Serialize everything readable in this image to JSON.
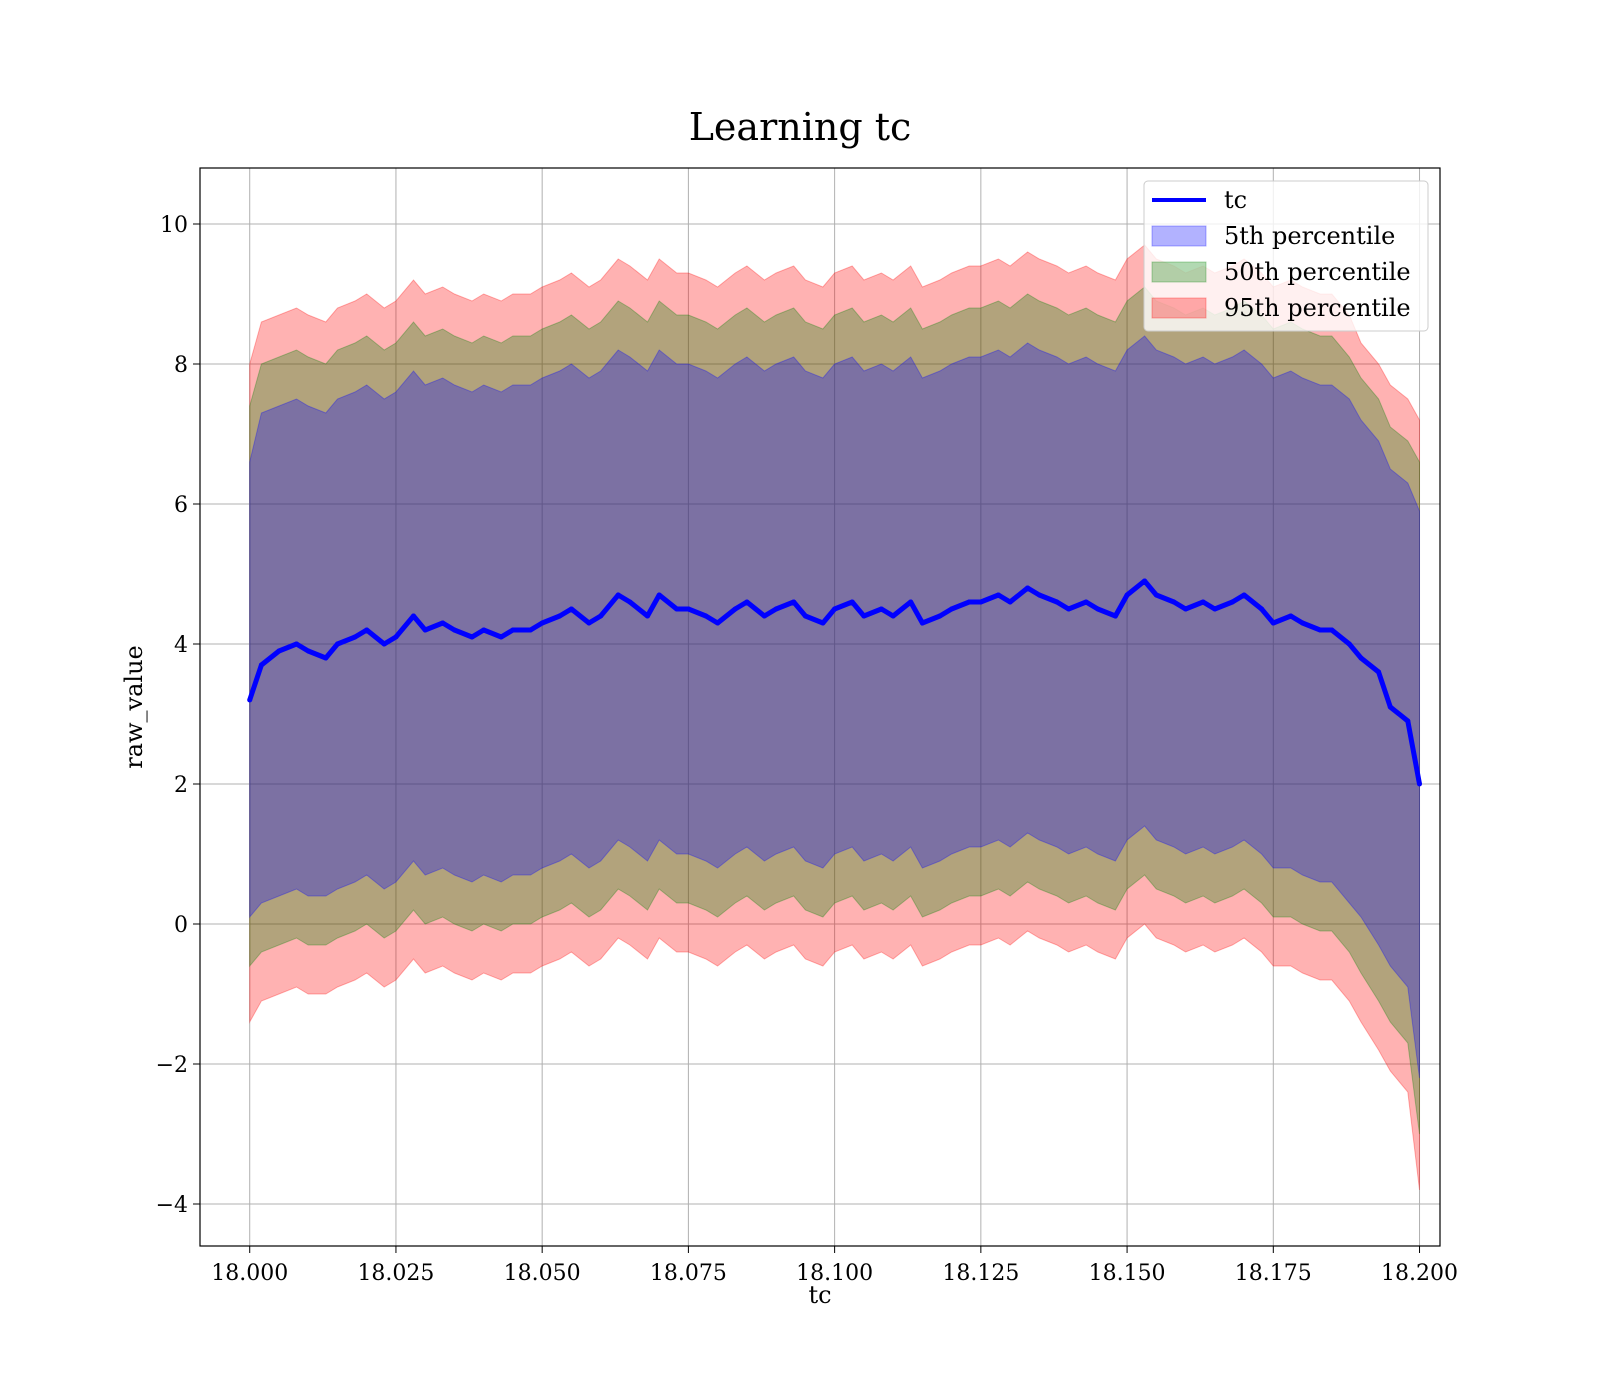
{
  "chart_data": {
    "type": "line",
    "title": "Learning tc",
    "xlabel": "tc",
    "ylabel": "raw_value",
    "xlim": [
      17.9915,
      18.2035
    ],
    "ylim": [
      -4.6,
      10.8
    ],
    "xticks": [
      18.0,
      18.025,
      18.05,
      18.075,
      18.1,
      18.125,
      18.15,
      18.175,
      18.2
    ],
    "xtick_labels": [
      "18.000",
      "18.025",
      "18.050",
      "18.075",
      "18.100",
      "18.125",
      "18.150",
      "18.175",
      "18.200"
    ],
    "yticks": [
      -4,
      -2,
      0,
      2,
      4,
      6,
      8,
      10
    ],
    "ytick_labels": [
      "−4",
      "−2",
      "0",
      "2",
      "4",
      "6",
      "8",
      "10"
    ],
    "grid": true,
    "legend_position": "top-right",
    "x": [
      18.0,
      18.002,
      18.005,
      18.008,
      18.01,
      18.013,
      18.015,
      18.018,
      18.02,
      18.023,
      18.025,
      18.028,
      18.03,
      18.033,
      18.035,
      18.038,
      18.04,
      18.043,
      18.045,
      18.048,
      18.05,
      18.053,
      18.055,
      18.058,
      18.06,
      18.063,
      18.065,
      18.068,
      18.07,
      18.073,
      18.075,
      18.078,
      18.08,
      18.083,
      18.085,
      18.088,
      18.09,
      18.093,
      18.095,
      18.098,
      18.1,
      18.103,
      18.105,
      18.108,
      18.11,
      18.113,
      18.115,
      18.118,
      18.12,
      18.123,
      18.125,
      18.128,
      18.13,
      18.133,
      18.135,
      18.138,
      18.14,
      18.143,
      18.145,
      18.148,
      18.15,
      18.153,
      18.155,
      18.158,
      18.16,
      18.163,
      18.165,
      18.168,
      18.17,
      18.173,
      18.175,
      18.178,
      18.18,
      18.183,
      18.185,
      18.188,
      18.19,
      18.193,
      18.195,
      18.198,
      18.2
    ],
    "series": [
      {
        "name": "tc",
        "color": "#0000ff",
        "values": [
          3.2,
          3.7,
          3.9,
          4.0,
          3.9,
          3.8,
          4.0,
          4.1,
          4.2,
          4.0,
          4.1,
          4.4,
          4.2,
          4.3,
          4.2,
          4.1,
          4.2,
          4.1,
          4.2,
          4.2,
          4.3,
          4.4,
          4.5,
          4.3,
          4.4,
          4.7,
          4.6,
          4.4,
          4.7,
          4.5,
          4.5,
          4.4,
          4.3,
          4.5,
          4.6,
          4.4,
          4.5,
          4.6,
          4.4,
          4.3,
          4.5,
          4.6,
          4.4,
          4.5,
          4.4,
          4.6,
          4.3,
          4.4,
          4.5,
          4.6,
          4.6,
          4.7,
          4.6,
          4.8,
          4.7,
          4.6,
          4.5,
          4.6,
          4.5,
          4.4,
          4.7,
          4.9,
          4.7,
          4.6,
          4.5,
          4.6,
          4.5,
          4.6,
          4.7,
          4.5,
          4.3,
          4.4,
          4.3,
          4.2,
          4.2,
          4.0,
          3.8,
          3.6,
          3.1,
          2.9,
          2.0
        ]
      },
      {
        "name": "5th percentile",
        "color": "#0000ff",
        "lower": [
          0.1,
          0.3,
          0.4,
          0.5,
          0.4,
          0.4,
          0.5,
          0.6,
          0.7,
          0.5,
          0.6,
          0.9,
          0.7,
          0.8,
          0.7,
          0.6,
          0.7,
          0.6,
          0.7,
          0.7,
          0.8,
          0.9,
          1.0,
          0.8,
          0.9,
          1.2,
          1.1,
          0.9,
          1.2,
          1.0,
          1.0,
          0.9,
          0.8,
          1.0,
          1.1,
          0.9,
          1.0,
          1.1,
          0.9,
          0.8,
          1.0,
          1.1,
          0.9,
          1.0,
          0.9,
          1.1,
          0.8,
          0.9,
          1.0,
          1.1,
          1.1,
          1.2,
          1.1,
          1.3,
          1.2,
          1.1,
          1.0,
          1.1,
          1.0,
          0.9,
          1.2,
          1.4,
          1.2,
          1.1,
          1.0,
          1.1,
          1.0,
          1.1,
          1.2,
          1.0,
          0.8,
          0.8,
          0.7,
          0.6,
          0.6,
          0.3,
          0.1,
          -0.3,
          -0.6,
          -0.9,
          -2.2
        ],
        "upper": [
          6.6,
          7.3,
          7.4,
          7.5,
          7.4,
          7.3,
          7.5,
          7.6,
          7.7,
          7.5,
          7.6,
          7.9,
          7.7,
          7.8,
          7.7,
          7.6,
          7.7,
          7.6,
          7.7,
          7.7,
          7.8,
          7.9,
          8.0,
          7.8,
          7.9,
          8.2,
          8.1,
          7.9,
          8.2,
          8.0,
          8.0,
          7.9,
          7.8,
          8.0,
          8.1,
          7.9,
          8.0,
          8.1,
          7.9,
          7.8,
          8.0,
          8.1,
          7.9,
          8.0,
          7.9,
          8.1,
          7.8,
          7.9,
          8.0,
          8.1,
          8.1,
          8.2,
          8.1,
          8.3,
          8.2,
          8.1,
          8.0,
          8.1,
          8.0,
          7.9,
          8.2,
          8.4,
          8.2,
          8.1,
          8.0,
          8.1,
          8.0,
          8.1,
          8.2,
          8.0,
          7.8,
          7.9,
          7.8,
          7.7,
          7.7,
          7.5,
          7.2,
          6.9,
          6.5,
          6.3,
          5.9
        ]
      },
      {
        "name": "50th percentile",
        "color": "#008000",
        "lower": [
          -0.6,
          -0.4,
          -0.3,
          -0.2,
          -0.3,
          -0.3,
          -0.2,
          -0.1,
          0.0,
          -0.2,
          -0.1,
          0.2,
          0.0,
          0.1,
          0.0,
          -0.1,
          0.0,
          -0.1,
          0.0,
          0.0,
          0.1,
          0.2,
          0.3,
          0.1,
          0.2,
          0.5,
          0.4,
          0.2,
          0.5,
          0.3,
          0.3,
          0.2,
          0.1,
          0.3,
          0.4,
          0.2,
          0.3,
          0.4,
          0.2,
          0.1,
          0.3,
          0.4,
          0.2,
          0.3,
          0.2,
          0.4,
          0.1,
          0.2,
          0.3,
          0.4,
          0.4,
          0.5,
          0.4,
          0.6,
          0.5,
          0.4,
          0.3,
          0.4,
          0.3,
          0.2,
          0.5,
          0.7,
          0.5,
          0.4,
          0.3,
          0.4,
          0.3,
          0.4,
          0.5,
          0.3,
          0.1,
          0.1,
          0.0,
          -0.1,
          -0.1,
          -0.4,
          -0.7,
          -1.1,
          -1.4,
          -1.7,
          -3.0
        ],
        "upper": [
          7.4,
          8.0,
          8.1,
          8.2,
          8.1,
          8.0,
          8.2,
          8.3,
          8.4,
          8.2,
          8.3,
          8.6,
          8.4,
          8.5,
          8.4,
          8.3,
          8.4,
          8.3,
          8.4,
          8.4,
          8.5,
          8.6,
          8.7,
          8.5,
          8.6,
          8.9,
          8.8,
          8.6,
          8.9,
          8.7,
          8.7,
          8.6,
          8.5,
          8.7,
          8.8,
          8.6,
          8.7,
          8.8,
          8.6,
          8.5,
          8.7,
          8.8,
          8.6,
          8.7,
          8.6,
          8.8,
          8.5,
          8.6,
          8.7,
          8.8,
          8.8,
          8.9,
          8.8,
          9.0,
          8.9,
          8.8,
          8.7,
          8.8,
          8.7,
          8.6,
          8.9,
          9.1,
          8.9,
          8.8,
          8.7,
          8.8,
          8.7,
          8.8,
          8.9,
          8.7,
          8.5,
          8.6,
          8.5,
          8.4,
          8.4,
          8.1,
          7.8,
          7.5,
          7.1,
          6.9,
          6.6
        ]
      },
      {
        "name": "95th percentile",
        "color": "#ff0000",
        "lower": [
          -1.4,
          -1.1,
          -1.0,
          -0.9,
          -1.0,
          -1.0,
          -0.9,
          -0.8,
          -0.7,
          -0.9,
          -0.8,
          -0.5,
          -0.7,
          -0.6,
          -0.7,
          -0.8,
          -0.7,
          -0.8,
          -0.7,
          -0.7,
          -0.6,
          -0.5,
          -0.4,
          -0.6,
          -0.5,
          -0.2,
          -0.3,
          -0.5,
          -0.2,
          -0.4,
          -0.4,
          -0.5,
          -0.6,
          -0.4,
          -0.3,
          -0.5,
          -0.4,
          -0.3,
          -0.5,
          -0.6,
          -0.4,
          -0.3,
          -0.5,
          -0.4,
          -0.5,
          -0.3,
          -0.6,
          -0.5,
          -0.4,
          -0.3,
          -0.3,
          -0.2,
          -0.3,
          -0.1,
          -0.2,
          -0.3,
          -0.4,
          -0.3,
          -0.4,
          -0.5,
          -0.2,
          0.0,
          -0.2,
          -0.3,
          -0.4,
          -0.3,
          -0.4,
          -0.3,
          -0.2,
          -0.4,
          -0.6,
          -0.6,
          -0.7,
          -0.8,
          -0.8,
          -1.1,
          -1.4,
          -1.8,
          -2.1,
          -2.4,
          -3.8
        ],
        "upper": [
          8.0,
          8.6,
          8.7,
          8.8,
          8.7,
          8.6,
          8.8,
          8.9,
          9.0,
          8.8,
          8.9,
          9.2,
          9.0,
          9.1,
          9.0,
          8.9,
          9.0,
          8.9,
          9.0,
          9.0,
          9.1,
          9.2,
          9.3,
          9.1,
          9.2,
          9.5,
          9.4,
          9.2,
          9.5,
          9.3,
          9.3,
          9.2,
          9.1,
          9.3,
          9.4,
          9.2,
          9.3,
          9.4,
          9.2,
          9.1,
          9.3,
          9.4,
          9.2,
          9.3,
          9.2,
          9.4,
          9.1,
          9.2,
          9.3,
          9.4,
          9.4,
          9.5,
          9.4,
          9.6,
          9.5,
          9.4,
          9.3,
          9.4,
          9.3,
          9.2,
          9.5,
          9.7,
          9.5,
          9.4,
          9.3,
          9.4,
          9.3,
          9.4,
          9.5,
          9.3,
          9.1,
          9.2,
          9.1,
          9.0,
          9.0,
          8.7,
          8.3,
          8.0,
          7.7,
          7.5,
          7.2
        ]
      }
    ]
  }
}
